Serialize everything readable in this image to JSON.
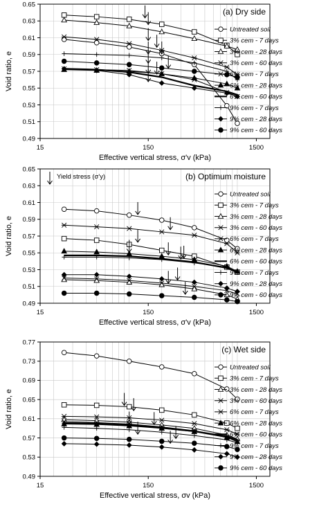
{
  "chart_data": [
    {
      "type": "line",
      "title": "(a) Dry side",
      "xlabel": "Effective vertical stress, σ'v (kPa)",
      "ylabel": "Void ratio, e",
      "xscale": "log",
      "xlim": [
        15,
        2000
      ],
      "ylim": [
        0.49,
        0.65
      ],
      "xticks": [
        15,
        150,
        1500
      ],
      "yticks": [
        0.49,
        0.51,
        0.53,
        0.55,
        0.57,
        0.59,
        0.61,
        0.63,
        0.65
      ],
      "grid": true,
      "legend": "right",
      "yield_label": "",
      "series": [
        {
          "name": "Untreated soil",
          "x": [
            25,
            50,
            100,
            200,
            400,
            800,
            1000
          ],
          "y": [
            0.608,
            0.604,
            0.599,
            0.591,
            0.578,
            0.529,
            0.508
          ]
        },
        {
          "name": "3% cem - 7 days",
          "x": [
            25,
            50,
            100,
            200,
            400,
            800,
            1000
          ],
          "y": [
            0.637,
            0.635,
            0.632,
            0.626,
            0.617,
            0.601,
            0.59
          ]
        },
        {
          "name": "3% cem - 28 days",
          "x": [
            25,
            50,
            100,
            200,
            400,
            800,
            1000
          ],
          "y": [
            0.631,
            0.628,
            0.624,
            0.617,
            0.609,
            0.6,
            0.596
          ]
        },
        {
          "name": "3% cem - 60 days",
          "x": [
            25,
            50,
            100,
            200,
            400,
            800,
            1000
          ],
          "y": [
            0.573,
            0.572,
            0.571,
            0.567,
            0.56,
            0.545,
            0.54
          ]
        },
        {
          "name": "6% cem - 7 days",
          "x": [
            25,
            50,
            100,
            200,
            400,
            800,
            1000
          ],
          "y": [
            0.611,
            0.608,
            0.603,
            0.595,
            0.586,
            0.575,
            0.566
          ]
        },
        {
          "name": "6% cem - 28 days",
          "x": [
            25,
            50,
            100,
            200,
            400,
            800,
            1000
          ],
          "y": [
            0.572,
            0.571,
            0.57,
            0.567,
            0.562,
            0.555,
            0.55
          ]
        },
        {
          "name": "6% cem - 60 days",
          "x": [
            25,
            50,
            100,
            200,
            400,
            800,
            1000
          ],
          "y": [
            0.573,
            0.572,
            0.569,
            0.563,
            0.553,
            0.546,
            0.542
          ]
        },
        {
          "name": "9% cem - 7 days",
          "x": [
            25,
            50,
            100,
            200,
            400,
            800,
            1000
          ],
          "y": [
            0.591,
            0.59,
            0.589,
            0.586,
            0.58,
            0.57,
            0.56
          ]
        },
        {
          "name": "9% cem - 28 days",
          "x": [
            25,
            50,
            100,
            200,
            400,
            800,
            1000
          ],
          "y": [
            0.573,
            0.571,
            0.566,
            0.556,
            0.55,
            0.544,
            0.54
          ]
        },
        {
          "name": "9% cem - 60 days",
          "x": [
            25,
            50,
            100,
            200,
            400,
            800,
            1000
          ],
          "y": [
            0.582,
            0.58,
            0.578,
            0.574,
            0.57,
            0.566,
            0.563
          ]
        }
      ],
      "yield_arrows": [
        {
          "x": 140,
          "y": 0.632
        },
        {
          "x": 150,
          "y": 0.624
        },
        {
          "x": 150,
          "y": 0.605
        },
        {
          "x": 150,
          "y": 0.589
        },
        {
          "x": 180,
          "y": 0.597
        },
        {
          "x": 200,
          "y": 0.589
        },
        {
          "x": 230,
          "y": 0.572
        },
        {
          "x": 150,
          "y": 0.578
        },
        {
          "x": 150,
          "y": 0.566
        },
        {
          "x": 180,
          "y": 0.565
        },
        {
          "x": 150,
          "y": 0.556
        }
      ]
    },
    {
      "type": "line",
      "title": "(b) Optimum moisture",
      "xlabel": "Effective vertical stress, σ'v (kPa)",
      "ylabel": "Void ratio, e",
      "xscale": "log",
      "xlim": [
        15,
        2000
      ],
      "ylim": [
        0.49,
        0.65
      ],
      "xticks": [
        15,
        150,
        1500
      ],
      "yticks": [
        0.49,
        0.51,
        0.53,
        0.55,
        0.57,
        0.59,
        0.61,
        0.63,
        0.65
      ],
      "grid": true,
      "legend": "right",
      "yield_label": "Yield stress (σ'y)",
      "series": [
        {
          "name": "Untreated soil",
          "x": [
            25,
            50,
            100,
            200,
            400,
            800,
            1000
          ],
          "y": [
            0.602,
            0.6,
            0.595,
            0.589,
            0.58,
            0.565,
            0.555
          ]
        },
        {
          "name": "3% cem - 7 days",
          "x": [
            25,
            50,
            100,
            200,
            400,
            800,
            1000
          ],
          "y": [
            0.567,
            0.565,
            0.56,
            0.553,
            0.546,
            0.533,
            0.527
          ]
        },
        {
          "name": "3% cem - 28 days",
          "x": [
            25,
            50,
            100,
            200,
            400,
            800,
            1000
          ],
          "y": [
            0.518,
            0.517,
            0.515,
            0.512,
            0.507,
            0.5,
            0.495
          ]
        },
        {
          "name": "3% cem - 60 days",
          "x": [
            25,
            50,
            100,
            200,
            400,
            800,
            1000
          ],
          "y": [
            0.52,
            0.519,
            0.517,
            0.514,
            0.51,
            0.505,
            0.501
          ]
        },
        {
          "name": "6% cem - 7 days",
          "x": [
            25,
            50,
            100,
            200,
            400,
            800,
            1000
          ],
          "y": [
            0.583,
            0.581,
            0.579,
            0.575,
            0.571,
            0.561,
            0.55
          ]
        },
        {
          "name": "6% cem - 28 days",
          "x": [
            25,
            50,
            100,
            200,
            400,
            800,
            1000
          ],
          "y": [
            0.552,
            0.551,
            0.549,
            0.546,
            0.542,
            0.534,
            0.528
          ]
        },
        {
          "name": "6% cem - 60 days",
          "x": [
            25,
            50,
            100,
            200,
            400,
            800,
            1000
          ],
          "y": [
            0.547,
            0.547,
            0.546,
            0.543,
            0.539,
            0.532,
            0.527
          ]
        },
        {
          "name": "9% cem - 7 days",
          "x": [
            25,
            50,
            100,
            200,
            400,
            800,
            1000
          ],
          "y": [
            0.545,
            0.545,
            0.544,
            0.542,
            0.538,
            0.533,
            0.527
          ]
        },
        {
          "name": "9% cem - 28 days",
          "x": [
            25,
            50,
            100,
            200,
            400,
            800,
            1000
          ],
          "y": [
            0.524,
            0.524,
            0.522,
            0.519,
            0.515,
            0.508,
            0.504
          ]
        },
        {
          "name": "9% cem - 60 days",
          "x": [
            25,
            50,
            100,
            200,
            400,
            800,
            1000
          ],
          "y": [
            0.502,
            0.502,
            0.501,
            0.499,
            0.497,
            0.494,
            0.492
          ]
        }
      ],
      "yield_arrows": [
        {
          "x": 120,
          "y": 0.594
        },
        {
          "x": 240,
          "y": 0.576
        },
        {
          "x": 120,
          "y": 0.561
        },
        {
          "x": 230,
          "y": 0.546
        },
        {
          "x": 100,
          "y": 0.549
        },
        {
          "x": 300,
          "y": 0.541
        },
        {
          "x": 320,
          "y": 0.542
        },
        {
          "x": 230,
          "y": 0.512
        },
        {
          "x": 280,
          "y": 0.516
        },
        {
          "x": 330,
          "y": 0.499
        }
      ]
    },
    {
      "type": "line",
      "title": "(c) Wet side",
      "xlabel": "Effective vertical stress, σv (kPa)",
      "ylabel": "Void ratio, e",
      "xscale": "log",
      "xlim": [
        15,
        2000
      ],
      "ylim": [
        0.49,
        0.77
      ],
      "xticks": [
        15,
        150,
        1500
      ],
      "yticks": [
        0.49,
        0.53,
        0.57,
        0.61,
        0.65,
        0.69,
        0.73,
        0.77
      ],
      "grid": true,
      "legend": "right",
      "yield_label": "",
      "series": [
        {
          "name": "Untreated soil",
          "x": [
            25,
            50,
            100,
            200,
            400,
            800,
            1000
          ],
          "y": [
            0.748,
            0.741,
            0.73,
            0.718,
            0.704,
            0.672,
            0.651
          ]
        },
        {
          "name": "3% cem - 7 days",
          "x": [
            25,
            50,
            100,
            200,
            400,
            800,
            1000
          ],
          "y": [
            0.639,
            0.638,
            0.635,
            0.628,
            0.618,
            0.601,
            0.59
          ]
        },
        {
          "name": "3% cem - 28 days",
          "x": [
            25,
            50,
            100,
            200,
            400,
            800,
            1000
          ],
          "y": [
            0.608,
            0.606,
            0.603,
            0.597,
            0.59,
            0.576,
            0.568
          ]
        },
        {
          "name": "3% cem - 60 days",
          "x": [
            25,
            50,
            100,
            200,
            400,
            800,
            1000
          ],
          "y": [
            0.604,
            0.602,
            0.599,
            0.593,
            0.585,
            0.572,
            0.563
          ]
        },
        {
          "name": "6% cem - 7 days",
          "x": [
            25,
            50,
            100,
            200,
            400,
            800,
            1000
          ],
          "y": [
            0.615,
            0.614,
            0.612,
            0.607,
            0.6,
            0.587,
            0.578
          ]
        },
        {
          "name": "6% cem - 28 days",
          "x": [
            25,
            50,
            100,
            200,
            400,
            800,
            1000
          ],
          "y": [
            0.599,
            0.598,
            0.595,
            0.59,
            0.583,
            0.571,
            0.562
          ]
        },
        {
          "name": "6% cem - 60 days",
          "x": [
            25,
            50,
            100,
            200,
            400,
            800,
            1000
          ],
          "y": [
            0.601,
            0.6,
            0.597,
            0.591,
            0.584,
            0.573,
            0.566
          ]
        },
        {
          "name": "9% cem - 7 days",
          "x": [
            25,
            50,
            100,
            200,
            400,
            800,
            1000
          ],
          "y": [
            0.592,
            0.59,
            0.587,
            0.582,
            0.575,
            0.566,
            0.56
          ]
        },
        {
          "name": "9% cem - 28 days",
          "x": [
            25,
            50,
            100,
            200,
            400,
            800,
            1000
          ],
          "y": [
            0.558,
            0.557,
            0.555,
            0.551,
            0.545,
            0.537,
            0.53
          ]
        },
        {
          "name": "9% cem - 60 days",
          "x": [
            25,
            50,
            100,
            200,
            400,
            800,
            1000
          ],
          "y": [
            0.57,
            0.569,
            0.567,
            0.563,
            0.559,
            0.552,
            0.546
          ]
        }
      ],
      "yield_arrows": [
        {
          "x": 90,
          "y": 0.635
        },
        {
          "x": 110,
          "y": 0.624
        },
        {
          "x": 100,
          "y": 0.596
        },
        {
          "x": 120,
          "y": 0.575
        },
        {
          "x": 170,
          "y": 0.595
        },
        {
          "x": 270,
          "y": 0.566
        },
        {
          "x": 240,
          "y": 0.556
        }
      ]
    }
  ]
}
